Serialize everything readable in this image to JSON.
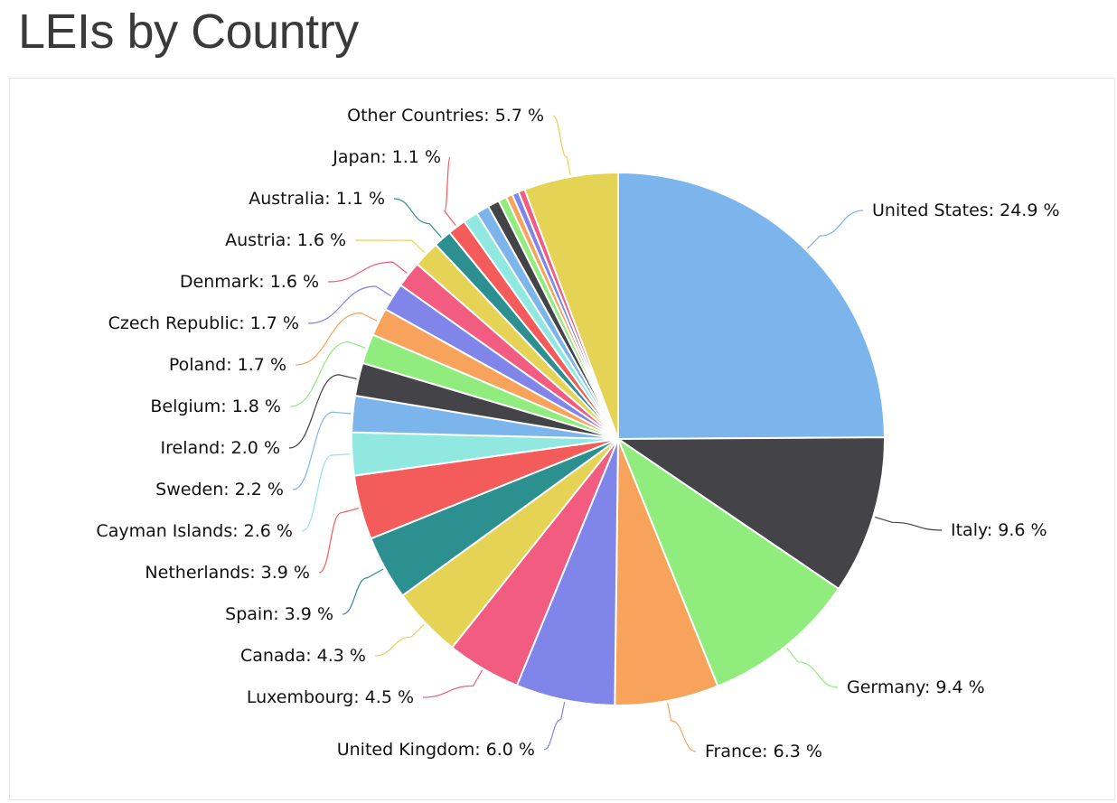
{
  "title": "LEIs by Country",
  "chart_data": {
    "type": "pie",
    "title": "",
    "start_angle_deg": 0,
    "direction": "clockwise",
    "slices": [
      {
        "name": "United States",
        "value": 24.9,
        "label": "United States: 24.9 %",
        "color": "#7cb5ec"
      },
      {
        "name": "Italy",
        "value": 9.6,
        "label": "Italy: 9.6 %",
        "color": "#434348"
      },
      {
        "name": "Germany",
        "value": 9.4,
        "label": "Germany: 9.4 %",
        "color": "#90ed7d"
      },
      {
        "name": "France",
        "value": 6.3,
        "label": "France: 6.3 %",
        "color": "#f7a35c"
      },
      {
        "name": "United Kingdom",
        "value": 6.0,
        "label": "United Kingdom: 6.0 %",
        "color": "#8085e9"
      },
      {
        "name": "Luxembourg",
        "value": 4.5,
        "label": "Luxembourg: 4.5 %",
        "color": "#f15c80"
      },
      {
        "name": "Canada",
        "value": 4.3,
        "label": "Canada: 4.3 %",
        "color": "#e4d354"
      },
      {
        "name": "Spain",
        "value": 3.9,
        "label": "Spain: 3.9 %",
        "color": "#2b908f"
      },
      {
        "name": "Netherlands",
        "value": 3.9,
        "label": "Netherlands: 3.9 %",
        "color": "#f45b5b"
      },
      {
        "name": "Cayman Islands",
        "value": 2.6,
        "label": "Cayman Islands: 2.6 %",
        "color": "#91e8e1"
      },
      {
        "name": "Sweden",
        "value": 2.2,
        "label": "Sweden: 2.2 %",
        "color": "#7cb5ec"
      },
      {
        "name": "Ireland",
        "value": 2.0,
        "label": "Ireland: 2.0 %",
        "color": "#434348"
      },
      {
        "name": "Belgium",
        "value": 1.8,
        "label": "Belgium: 1.8 %",
        "color": "#90ed7d"
      },
      {
        "name": "Poland",
        "value": 1.7,
        "label": "Poland: 1.7 %",
        "color": "#f7a35c"
      },
      {
        "name": "Czech Republic",
        "value": 1.7,
        "label": "Czech Republic: 1.7 %",
        "color": "#8085e9"
      },
      {
        "name": "Denmark",
        "value": 1.6,
        "label": "Denmark: 1.6 %",
        "color": "#f15c80"
      },
      {
        "name": "Austria",
        "value": 1.6,
        "label": "Austria: 1.6 %",
        "color": "#e4d354"
      },
      {
        "name": "Australia",
        "value": 1.1,
        "label": "Australia: 1.1 %",
        "color": "#2b908f"
      },
      {
        "name": "Japan",
        "value": 1.1,
        "label": "Japan: 1.1 %",
        "color": "#f45b5b"
      },
      {
        "value": 0.9,
        "label": "",
        "color": "#91e8e1"
      },
      {
        "value": 0.8,
        "label": "",
        "color": "#7cb5ec"
      },
      {
        "value": 0.7,
        "label": "",
        "color": "#434348"
      },
      {
        "value": 0.5,
        "label": "",
        "color": "#90ed7d"
      },
      {
        "value": 0.4,
        "label": "",
        "color": "#f7a35c"
      },
      {
        "value": 0.4,
        "label": "",
        "color": "#8085e9"
      },
      {
        "value": 0.4,
        "label": "",
        "color": "#f15c80"
      },
      {
        "name": "Other Countries",
        "value": 5.7,
        "label": "Other Countries: 5.7 %",
        "color": "#e4d354"
      }
    ]
  }
}
